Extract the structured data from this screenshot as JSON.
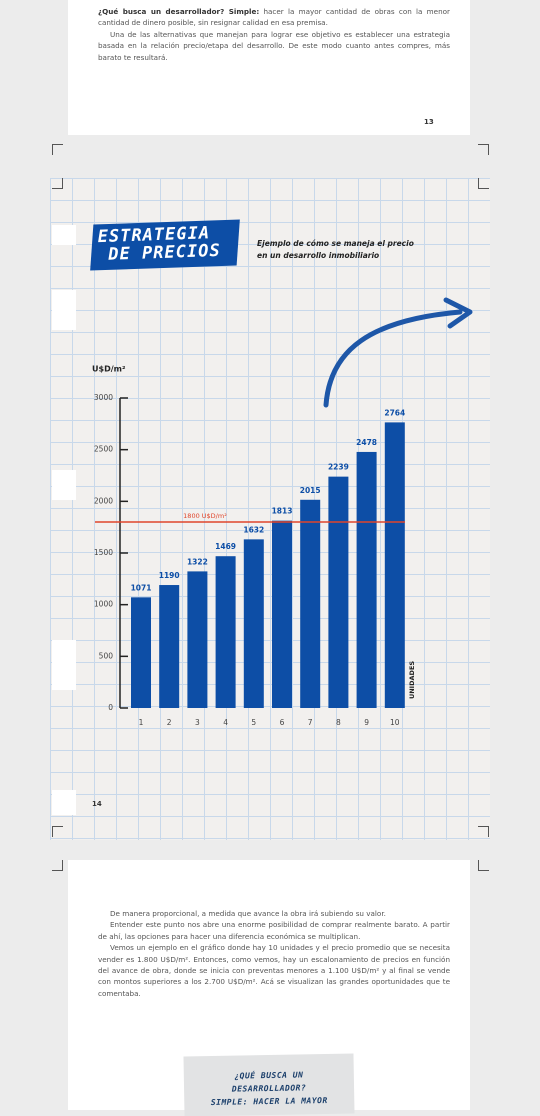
{
  "top_page": {
    "paragraphs": [
      {
        "bold": "¿Qué busca un desarrollador? Simple:",
        "text": " hacer la mayor cantidad de obras con la menor cantidad de dinero posible, sin resignar calidad en esa premisa."
      },
      {
        "text": "Una de las alternativas que manejan para lograr ese objetivo es establecer una estrategia basada en la relación precio/etapa del desarrollo. De este modo cuanto antes compres, más barato te resultará."
      }
    ],
    "page_number": "13"
  },
  "chart_page": {
    "badge": [
      "ESTRATEGIA",
      "DE PRECIOS"
    ],
    "caption": "Ejemplo de cómo se maneja el precio en un desarrollo inmobiliario",
    "page_number": "14"
  },
  "chart_data": {
    "type": "bar",
    "y_label": "U$D/m²",
    "x_label": "UNIDADES",
    "categories": [
      "1",
      "2",
      "3",
      "4",
      "5",
      "6",
      "7",
      "8",
      "9",
      "10"
    ],
    "values": [
      1071,
      1190,
      1322,
      1469,
      1632,
      1813,
      2015,
      2239,
      2478,
      2764
    ],
    "color": "#0d4ea6",
    "ylim": [
      0,
      3000
    ],
    "yticks": [
      0,
      500,
      1000,
      1500,
      2000,
      2500,
      3000
    ],
    "reference": {
      "value": 1800,
      "label": "1800 U$D/m²",
      "color": "#e0452b"
    }
  },
  "bottom_page": {
    "paragraphs": [
      "De manera proporcional, a medida que avance la obra irá subiendo su valor.",
      "Entender este punto nos abre una enorme posibilidad de comprar realmente barato. A partir de ahí, las opciones para hacer una diferencia económica se multiplican.",
      "Vemos un ejemplo en el gráfico donde hay 10 unidades y el precio promedio que se necesita vender es 1.800 U$D/m². Entonces, como vemos, hay un escalonamiento de precios en función del avance de obra, donde se inicia con preventas menores a 1.100 U$D/m² y al final se vende con montos superiores a los 2.700 U$D/m². Acá se visualizan las grandes oportunidades que te comentaba."
    ],
    "box": [
      "¿QUÉ BUSCA UN",
      "DESARROLLADOR?",
      "SIMPLE: HACER LA MAYOR"
    ]
  }
}
